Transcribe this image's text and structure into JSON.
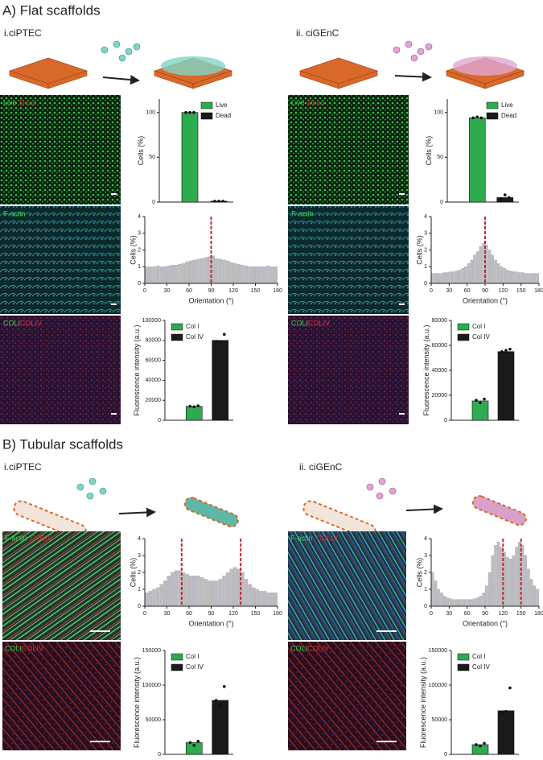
{
  "sections": [
    {
      "title": "A) Flat scaffolds",
      "panels": [
        {
          "title": "i.ciPTEC"
        },
        {
          "title": "ii. ciGEnC"
        }
      ]
    },
    {
      "title": "B) Tubular scaffolds",
      "panels": [
        {
          "title": "i.ciPTEC"
        },
        {
          "title": "ii. ciGEnC"
        }
      ]
    }
  ],
  "image_labels": {
    "live": "Live",
    "dead": "Dead",
    "factin": "F-actin",
    "coli": "COLI",
    "coliv": "COLIV"
  },
  "chart_data": [
    {
      "type": "bar",
      "ylabel": "Cells (%)",
      "categories": [
        "Live",
        "Dead"
      ],
      "values": [
        100,
        1
      ],
      "colors": [
        "#2eaa4f",
        "#1a1a1a"
      ],
      "points": [
        [
          100,
          100,
          100
        ],
        [
          1,
          1,
          1
        ]
      ],
      "ylim": [
        0,
        115
      ],
      "yticks": [
        0,
        50,
        100
      ],
      "legend": "top-right"
    },
    {
      "type": "histogram",
      "ylabel": "Cells (%)",
      "xlabel": "Orientation (°)",
      "bins": [
        0,
        5,
        10,
        15,
        20,
        25,
        30,
        35,
        40,
        45,
        50,
        55,
        60,
        65,
        70,
        75,
        80,
        85,
        90,
        95,
        100,
        105,
        110,
        115,
        120,
        125,
        130,
        135,
        140,
        145,
        150,
        155,
        160,
        165,
        170,
        175,
        180
      ],
      "values": [
        1.0,
        1.0,
        1.0,
        1.05,
        1.0,
        1.0,
        1.05,
        1.1,
        1.1,
        1.15,
        1.2,
        1.3,
        1.35,
        1.4,
        1.45,
        1.5,
        1.55,
        1.6,
        1.65,
        1.5,
        1.45,
        1.4,
        1.35,
        1.25,
        1.2,
        1.15,
        1.1,
        1.05,
        1.0,
        1.0,
        1.0,
        1.0,
        1.0,
        1.05,
        1.0,
        1.0
      ],
      "color": "#bdbdbd",
      "reference_lines": [
        90
      ],
      "reference_color": "#c0282d",
      "xlim": [
        0,
        180
      ],
      "xticks": [
        0,
        30,
        60,
        90,
        120,
        150,
        180
      ],
      "ylim": [
        0,
        4
      ],
      "yticks": [
        0,
        1,
        2,
        3,
        4
      ]
    },
    {
      "type": "bar",
      "ylabel": "Fluorescence intensity (a.u.)",
      "categories": [
        "Col I",
        "Col IV"
      ],
      "values": [
        14000,
        80000
      ],
      "colors": [
        "#2eaa4f",
        "#1a1a1a"
      ],
      "points": [
        [
          14000,
          13500,
          14500
        ],
        [
          79000,
          78000,
          86000
        ]
      ],
      "ylim": [
        0,
        100000
      ],
      "yticks": [
        0,
        20000,
        40000,
        60000,
        80000,
        100000
      ],
      "legend": "top-left"
    },
    {
      "type": "bar",
      "ylabel": "Cells (%)",
      "categories": [
        "Live",
        "Dead"
      ],
      "values": [
        94,
        5
      ],
      "colors": [
        "#2eaa4f",
        "#1a1a1a"
      ],
      "points": [
        [
          94,
          95,
          94
        ],
        [
          4,
          8,
          5
        ]
      ],
      "ylim": [
        0,
        115
      ],
      "yticks": [
        0,
        50,
        100
      ],
      "legend": "top-right"
    },
    {
      "type": "histogram",
      "ylabel": "Cells (%)",
      "xlabel": "Orientation (°)",
      "bins": [
        0,
        5,
        10,
        15,
        20,
        25,
        30,
        35,
        40,
        45,
        50,
        55,
        60,
        65,
        70,
        75,
        80,
        85,
        90,
        95,
        100,
        105,
        110,
        115,
        120,
        125,
        130,
        135,
        140,
        145,
        150,
        155,
        160,
        165,
        170,
        175,
        180
      ],
      "values": [
        0.6,
        0.6,
        0.6,
        0.6,
        0.65,
        0.65,
        0.7,
        0.7,
        0.75,
        0.8,
        0.9,
        1.0,
        1.2,
        1.4,
        1.7,
        1.9,
        2.2,
        2.4,
        2.3,
        2.0,
        1.7,
        1.4,
        1.2,
        1.0,
        0.9,
        0.8,
        0.75,
        0.7,
        0.7,
        0.65,
        0.65,
        0.6,
        0.6,
        0.6,
        0.6,
        0.6
      ],
      "color": "#bdbdbd",
      "reference_lines": [
        90
      ],
      "reference_color": "#c0282d",
      "xlim": [
        0,
        180
      ],
      "xticks": [
        0,
        30,
        60,
        90,
        120,
        150,
        180
      ],
      "ylim": [
        0,
        4
      ],
      "yticks": [
        0,
        1,
        2,
        3,
        4
      ]
    },
    {
      "type": "bar",
      "ylabel": "Fluorescence intensity (a.u.)",
      "categories": [
        "Col I",
        "Col IV"
      ],
      "values": [
        15500,
        55000
      ],
      "colors": [
        "#2eaa4f",
        "#1a1a1a"
      ],
      "points": [
        [
          16000,
          14000,
          17000
        ],
        [
          55000,
          56000,
          57000
        ]
      ],
      "ylim": [
        0,
        80000
      ],
      "yticks": [
        0,
        20000,
        40000,
        60000,
        80000
      ],
      "legend": "top-left"
    },
    {
      "type": "histogram",
      "ylabel": "Cells (%)",
      "xlabel": "Orientation (°)",
      "bins": [
        0,
        5,
        10,
        15,
        20,
        25,
        30,
        35,
        40,
        45,
        50,
        55,
        60,
        65,
        70,
        75,
        80,
        85,
        90,
        95,
        100,
        105,
        110,
        115,
        120,
        125,
        130,
        135,
        140,
        145,
        150,
        155,
        160,
        165,
        170,
        175,
        180
      ],
      "values": [
        0.8,
        0.9,
        1.0,
        1.1,
        1.3,
        1.5,
        1.8,
        2.0,
        2.1,
        2.1,
        2.0,
        1.9,
        1.8,
        1.8,
        1.8,
        1.7,
        1.6,
        1.5,
        1.5,
        1.5,
        1.6,
        1.8,
        2.0,
        2.2,
        2.3,
        2.2,
        2.0,
        1.6,
        1.3,
        1.1,
        1.0,
        0.9,
        0.9,
        0.8,
        0.8,
        0.8
      ],
      "color": "#bdbdbd",
      "reference_lines": [
        50,
        130
      ],
      "reference_color": "#c0282d",
      "xlim": [
        0,
        180
      ],
      "xticks": [
        0,
        30,
        60,
        90,
        120,
        150,
        180
      ],
      "ylim": [
        0,
        4
      ],
      "yticks": [
        0,
        1,
        2,
        3,
        4
      ]
    },
    {
      "type": "bar",
      "ylabel": "Fluorescence intensity (a.u.)",
      "categories": [
        "Col I",
        "Col IV"
      ],
      "values": [
        17000,
        78000
      ],
      "colors": [
        "#2eaa4f",
        "#1a1a1a"
      ],
      "points": [
        [
          17000,
          13000,
          19000
        ],
        [
          78000,
          72000,
          98000
        ]
      ],
      "ylim": [
        0,
        150000
      ],
      "yticks": [
        0,
        50000,
        100000,
        150000
      ],
      "legend": "top-left"
    },
    {
      "type": "histogram",
      "ylabel": "Cells (%)",
      "xlabel": "Orientation (°)",
      "bins": [
        0,
        5,
        10,
        15,
        20,
        25,
        30,
        35,
        40,
        45,
        50,
        55,
        60,
        65,
        70,
        75,
        80,
        85,
        90,
        95,
        100,
        105,
        110,
        115,
        120,
        125,
        130,
        135,
        140,
        145,
        150,
        155,
        160,
        165,
        170,
        175,
        180
      ],
      "values": [
        2.0,
        1.5,
        1.0,
        0.8,
        0.6,
        0.5,
        0.45,
        0.4,
        0.4,
        0.4,
        0.4,
        0.4,
        0.4,
        0.4,
        0.45,
        0.5,
        0.6,
        0.8,
        1.2,
        2.0,
        3.0,
        3.6,
        3.8,
        3.5,
        3.2,
        2.9,
        2.8,
        3.0,
        3.5,
        3.8,
        3.6,
        3.0,
        2.2,
        1.6,
        1.2,
        1.0
      ],
      "color": "#bdbdbd",
      "reference_lines": [
        120,
        150
      ],
      "reference_color": "#c0282d",
      "xlim": [
        0,
        180
      ],
      "xticks": [
        0,
        30,
        60,
        90,
        120,
        150,
        180
      ],
      "ylim": [
        0,
        4
      ],
      "yticks": [
        0,
        1,
        2,
        3,
        4
      ]
    },
    {
      "type": "bar",
      "ylabel": "Fluorescence intensity (a.u.)",
      "categories": [
        "Col I",
        "Col IV"
      ],
      "values": [
        14000,
        63000
      ],
      "colors": [
        "#2eaa4f",
        "#1a1a1a"
      ],
      "points": [
        [
          14000,
          12000,
          16000
        ],
        [
          60000,
          62000,
          96000
        ]
      ],
      "ylim": [
        0,
        150000
      ],
      "yticks": [
        0,
        50000,
        100000,
        150000
      ],
      "legend": "top-left"
    }
  ]
}
